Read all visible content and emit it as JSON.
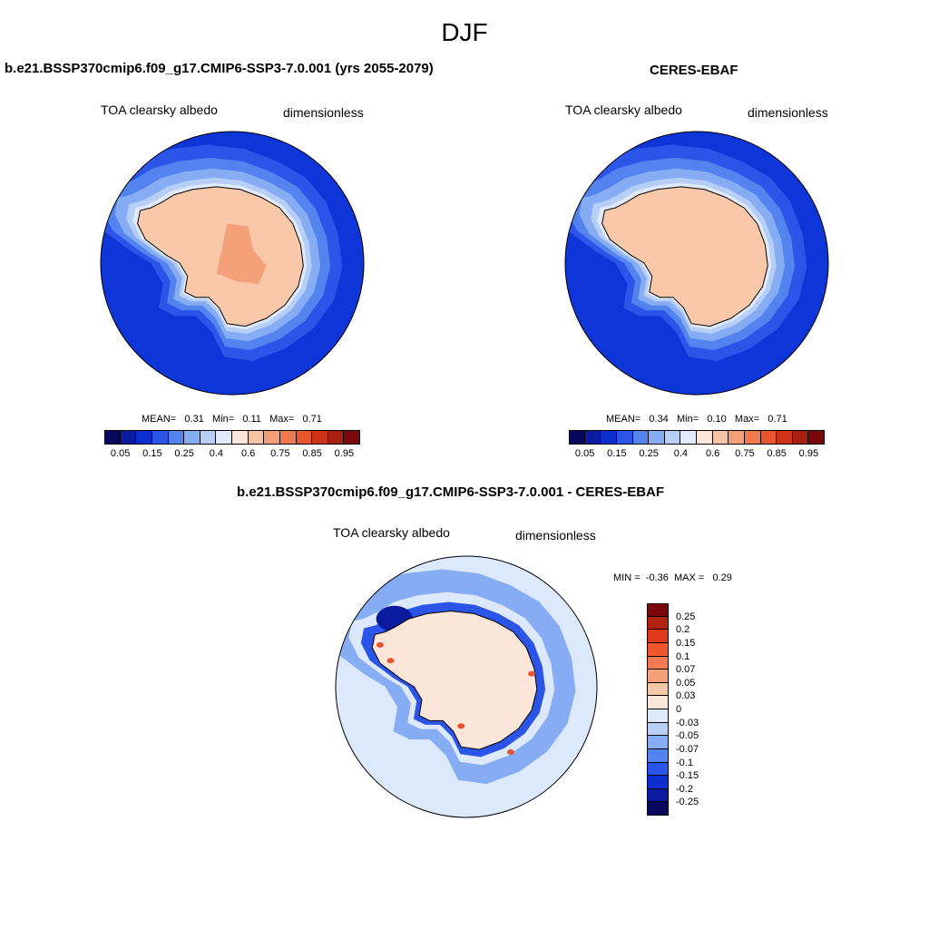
{
  "season": "DJF",
  "panels": [
    {
      "title": "b.e21.BSSP370cmip6.f09_g17.CMIP6-SSP3-7.0.001 (yrs 2055-2079)",
      "variable": "TOA clearsky albedo",
      "units": "dimensionless",
      "stats": {
        "mean_label": "MEAN=",
        "mean": "0.31",
        "min_label": "Min=",
        "min": "0.11",
        "max_label": "Max=",
        "max": "0.71"
      }
    },
    {
      "title": "CERES-EBAF",
      "variable": "TOA clearsky albedo",
      "units": "dimensionless",
      "stats": {
        "mean_label": "MEAN=",
        "mean": "0.34",
        "min_label": "Min=",
        "min": "0.10",
        "max_label": "Max=",
        "max": "0.71"
      }
    },
    {
      "title": "b.e21.BSSP370cmip6.f09_g17.CMIP6-SSP3-7.0.001 - CERES-EBAF",
      "variable": "TOA clearsky albedo",
      "units": "dimensionless",
      "stats": {
        "min_label": "MIN =",
        "min": "-0.36",
        "max_label": "MAX =",
        "max": "0.29"
      }
    }
  ],
  "colorbar_abs": {
    "colors": [
      "#08085e",
      "#0a1ba0",
      "#0d2fd0",
      "#2a55e8",
      "#5283ef",
      "#86acf3",
      "#b7cff7",
      "#e0eafb",
      "#fbe6d9",
      "#f7c3a5",
      "#f49f78",
      "#f07a50",
      "#e8552f",
      "#cc3317",
      "#a8200e",
      "#7a0808"
    ],
    "ticks": [
      "0.05",
      "0.15",
      "0.25",
      "0.4",
      "0.6",
      "0.75",
      "0.85",
      "0.95"
    ]
  },
  "colorbar_diff": {
    "colors": [
      "#7a0808",
      "#b12210",
      "#de3a1b",
      "#f0552e",
      "#f27a52",
      "#f4a079",
      "#f8c8a8",
      "#fbe6d9",
      "#dce8fb",
      "#b7cff7",
      "#86acf3",
      "#5283ef",
      "#2a55e8",
      "#0d2fd0",
      "#0a1ba0",
      "#08085e"
    ],
    "ticks": [
      "0.25",
      "0.2",
      "0.15",
      "0.1",
      "0.07",
      "0.05",
      "0.03",
      "0",
      "-0.03",
      "-0.05",
      "-0.07",
      "-0.1",
      "-0.15",
      "-0.2",
      "-0.25"
    ]
  },
  "map_colors": {
    "ocean": "#0d35d8",
    "shelf1": "#2a55e8",
    "shelf2": "#5283ef",
    "shelf3": "#86acf3",
    "shelf4": "#b7cff7",
    "shelf5": "#e0eafb",
    "land": "#f8c8a8",
    "plateau": "#f4a079",
    "diff_bg": "#dce8fb",
    "diff_pos": "#fbe6d9",
    "diff_neg1": "#86acf3",
    "diff_neg2": "#2a55e8",
    "diff_neg3": "#0a1ba0",
    "diff_hot": "#e8552f"
  }
}
